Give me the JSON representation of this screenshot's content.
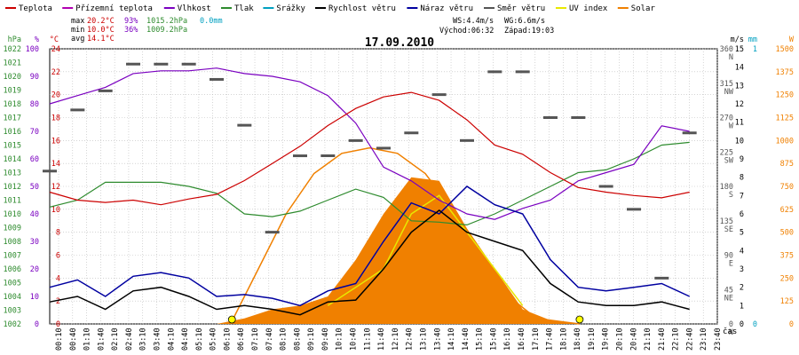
{
  "legend": [
    {
      "label": "Teplota",
      "color": "#cc0000"
    },
    {
      "label": "Přízemní teplota",
      "color": "#b000b0"
    },
    {
      "label": "Vlhkost",
      "color": "#7a00c0"
    },
    {
      "label": "Tlak",
      "color": "#2e8b2e"
    },
    {
      "label": "Srážky",
      "color": "#00a0c0"
    },
    {
      "label": "Rychlost větru",
      "color": "#000000"
    },
    {
      "label": "Náraz větru",
      "color": "#0000a0"
    },
    {
      "label": "Směr větru",
      "color": "#555555"
    },
    {
      "label": "UV index",
      "color": "#e8e800"
    },
    {
      "label": "Solar",
      "color": "#f08000"
    }
  ],
  "stats": {
    "max": {
      "label": "max",
      "temp": "20.2°C",
      "hum": "93%",
      "press": "1015.2hPa",
      "rain": "0.0mm"
    },
    "min": {
      "label": "min",
      "temp": "10.0°C",
      "hum": "36%",
      "press": "1009.2hPa"
    },
    "avg": {
      "label": "avg",
      "temp": "14.1°C"
    }
  },
  "wind_info": {
    "ws": "WS:4.4m/s",
    "wg": "WG:6.6m/s",
    "sunrise": "Východ:06:32",
    "sunset": "Západ:19:03"
  },
  "date": "17.09.2010",
  "colors": {
    "temp": "#cc0000",
    "hum": "#7a00c0",
    "press": "#2e8b2e",
    "wind": "#000000",
    "gust": "#0000a0",
    "dir": "#555555",
    "uv": "#e8e800",
    "solar": "#f08000",
    "rain": "#00a0c0"
  },
  "chart_data": {
    "type": "line",
    "date": "17.09.2010",
    "x_unit": "čas",
    "x_ticks": [
      "00:10",
      "00:40",
      "01:10",
      "01:40",
      "02:10",
      "02:40",
      "03:10",
      "03:40",
      "04:10",
      "04:40",
      "05:10",
      "05:40",
      "06:10",
      "06:40",
      "07:10",
      "07:40",
      "08:10",
      "08:40",
      "09:10",
      "09:40",
      "10:10",
      "10:40",
      "11:10",
      "11:40",
      "12:10",
      "12:40",
      "13:10",
      "13:40",
      "14:10",
      "14:40",
      "15:10",
      "15:40",
      "16:10",
      "16:40",
      "17:10",
      "17:40",
      "18:10",
      "18:40",
      "19:10",
      "19:40",
      "20:10",
      "20:40",
      "21:10",
      "21:40",
      "22:10",
      "22:40",
      "23:10",
      "23:40"
    ],
    "axes": {
      "pressure": {
        "unit": "hPa",
        "min": 1002,
        "max": 1022,
        "ticks": [
          "1022",
          "1021",
          "1020",
          "1019",
          "1018",
          "1017",
          "1016",
          "1015",
          "1014",
          "1013",
          "1012",
          "1011",
          "1010",
          "1009",
          "1008",
          "1007",
          "1006",
          "1005",
          "1004",
          "1003",
          "1002"
        ]
      },
      "humidity": {
        "unit": "%",
        "min": 0,
        "max": 100,
        "ticks": [
          "100",
          "90",
          "80",
          "70",
          "60",
          "50",
          "40",
          "30",
          "20",
          "10",
          "0"
        ]
      },
      "temperature": {
        "unit": "°C",
        "min": 0,
        "max": 24,
        "ticks": [
          "24",
          "22",
          "20",
          "18",
          "16",
          "14",
          "12",
          "10",
          "8",
          "6",
          "4",
          "2",
          "0"
        ]
      },
      "direction": {
        "ticks": [
          "360\nN",
          "315\nNW",
          "270\nW",
          "225\nSW",
          "180\nS",
          "135\nSE",
          "90\nE",
          "45\nNE",
          "0\nN"
        ]
      },
      "wind": {
        "unit": "m/s",
        "min": 0,
        "max": 15,
        "ticks": [
          "15",
          "14",
          "13",
          "12",
          "11",
          "10",
          "9",
          "8",
          "7",
          "6",
          "5",
          "4",
          "3",
          "2",
          "1",
          "0"
        ]
      },
      "rain": {
        "unit": "mm",
        "min": 0,
        "max": 1,
        "ticks": [
          "1",
          "0"
        ]
      },
      "solar": {
        "unit": "W",
        "min": 0,
        "max": 1500,
        "ticks": [
          "1500",
          "1375",
          "1250",
          "1125",
          "1000",
          "875",
          "750",
          "625",
          "500",
          "375",
          "250",
          "125",
          "0"
        ]
      }
    },
    "series": [
      {
        "name": "Teplota",
        "unit": "°C",
        "points": [
          [
            0,
            11.5
          ],
          [
            1,
            10.8
          ],
          [
            2,
            10.6
          ],
          [
            3,
            10.8
          ],
          [
            4,
            10.4
          ],
          [
            5,
            10.9
          ],
          [
            6,
            11.3
          ],
          [
            7,
            12.5
          ],
          [
            8,
            14.0
          ],
          [
            9,
            15.5
          ],
          [
            10,
            17.3
          ],
          [
            11,
            18.8
          ],
          [
            12,
            19.8
          ],
          [
            13,
            20.2
          ],
          [
            14,
            19.5
          ],
          [
            15,
            17.8
          ],
          [
            16,
            15.6
          ],
          [
            17,
            14.8
          ],
          [
            18,
            13.2
          ],
          [
            19,
            11.9
          ],
          [
            20,
            11.5
          ],
          [
            21,
            11.2
          ],
          [
            22,
            11.0
          ],
          [
            23,
            11.5
          ]
        ]
      },
      {
        "name": "Vlhkost",
        "unit": "%",
        "points": [
          [
            0,
            80
          ],
          [
            1,
            83
          ],
          [
            2,
            86
          ],
          [
            3,
            91
          ],
          [
            4,
            92
          ],
          [
            5,
            92
          ],
          [
            6,
            93
          ],
          [
            7,
            91
          ],
          [
            8,
            90
          ],
          [
            9,
            88
          ],
          [
            10,
            83
          ],
          [
            11,
            73
          ],
          [
            12,
            57
          ],
          [
            13,
            52
          ],
          [
            14,
            45
          ],
          [
            15,
            40
          ],
          [
            16,
            38
          ],
          [
            17,
            42
          ],
          [
            18,
            45
          ],
          [
            19,
            52
          ],
          [
            20,
            55
          ],
          [
            21,
            58
          ],
          [
            22,
            72
          ],
          [
            23,
            70
          ]
        ]
      },
      {
        "name": "Tlak",
        "unit": "hPa",
        "points": [
          [
            0,
            1010.5
          ],
          [
            1,
            1011
          ],
          [
            2,
            1012.3
          ],
          [
            3,
            1012.3
          ],
          [
            4,
            1012.3
          ],
          [
            5,
            1012
          ],
          [
            6,
            1011.5
          ],
          [
            7,
            1010
          ],
          [
            8,
            1009.8
          ],
          [
            9,
            1010.2
          ],
          [
            10,
            1011
          ],
          [
            11,
            1011.8
          ],
          [
            12,
            1011.2
          ],
          [
            13,
            1009.5
          ],
          [
            14,
            1009.4
          ],
          [
            15,
            1009.2
          ],
          [
            16,
            1010
          ],
          [
            17,
            1011
          ],
          [
            18,
            1012
          ],
          [
            19,
            1013
          ],
          [
            20,
            1013.2
          ],
          [
            21,
            1014
          ],
          [
            22,
            1015
          ],
          [
            23,
            1015.2
          ]
        ]
      },
      {
        "name": "Rychlost větru",
        "unit": "m/s",
        "points": [
          [
            0,
            1.2
          ],
          [
            1,
            1.5
          ],
          [
            2,
            0.8
          ],
          [
            3,
            1.8
          ],
          [
            4,
            2.0
          ],
          [
            5,
            1.5
          ],
          [
            6,
            0.8
          ],
          [
            7,
            1.0
          ],
          [
            8,
            0.8
          ],
          [
            9,
            0.5
          ],
          [
            10,
            1.2
          ],
          [
            11,
            1.3
          ],
          [
            12,
            3.0
          ],
          [
            13,
            5.0
          ],
          [
            14,
            6.2
          ],
          [
            15,
            5.0
          ],
          [
            16,
            4.5
          ],
          [
            17,
            4.0
          ],
          [
            18,
            2.2
          ],
          [
            19,
            1.2
          ],
          [
            20,
            1.0
          ],
          [
            21,
            1.0
          ],
          [
            22,
            1.2
          ],
          [
            23,
            0.8
          ]
        ]
      },
      {
        "name": "Náraz větru",
        "unit": "m/s",
        "points": [
          [
            0,
            2.0
          ],
          [
            1,
            2.4
          ],
          [
            2,
            1.5
          ],
          [
            3,
            2.6
          ],
          [
            4,
            2.8
          ],
          [
            5,
            2.5
          ],
          [
            6,
            1.5
          ],
          [
            7,
            1.6
          ],
          [
            8,
            1.4
          ],
          [
            9,
            1.0
          ],
          [
            10,
            1.8
          ],
          [
            11,
            2.2
          ],
          [
            12,
            4.5
          ],
          [
            13,
            6.6
          ],
          [
            14,
            6.0
          ],
          [
            15,
            7.5
          ],
          [
            16,
            6.5
          ],
          [
            17,
            6.0
          ],
          [
            18,
            3.5
          ],
          [
            19,
            2.0
          ],
          [
            20,
            1.8
          ],
          [
            21,
            2.0
          ],
          [
            22,
            2.2
          ],
          [
            23,
            1.5
          ]
        ]
      },
      {
        "name": "Solar",
        "unit": "W",
        "points": [
          [
            6,
            0
          ],
          [
            7,
            30
          ],
          [
            8,
            80
          ],
          [
            9,
            100
          ],
          [
            10,
            150
          ],
          [
            11,
            350
          ],
          [
            12,
            600
          ],
          [
            13,
            800
          ],
          [
            14,
            780
          ],
          [
            15,
            520
          ],
          [
            16,
            300
          ],
          [
            17,
            80
          ],
          [
            18,
            20
          ],
          [
            19,
            0
          ]
        ]
      },
      {
        "name": "Solar theoretical",
        "unit": "W",
        "points": [
          [
            6.5,
            0
          ],
          [
            7.5,
            300
          ],
          [
            8.5,
            600
          ],
          [
            9.5,
            820
          ],
          [
            10.5,
            930
          ],
          [
            11.5,
            960
          ],
          [
            12.5,
            930
          ],
          [
            13.5,
            820
          ],
          [
            14.5,
            620
          ],
          [
            15.5,
            380
          ],
          [
            16.5,
            150
          ],
          [
            17.5,
            30
          ],
          [
            19.05,
            0
          ]
        ]
      },
      {
        "name": "UV index",
        "unit": "",
        "points": [
          [
            10,
            1
          ],
          [
            11,
            2
          ],
          [
            12,
            3
          ],
          [
            13,
            6
          ],
          [
            14,
            7
          ],
          [
            15,
            5
          ],
          [
            16,
            3
          ],
          [
            17,
            1
          ]
        ]
      },
      {
        "name": "Směr větru",
        "unit": "°",
        "points": [
          [
            0,
            200
          ],
          [
            1,
            280
          ],
          [
            2,
            305
          ],
          [
            3,
            340
          ],
          [
            4,
            340
          ],
          [
            5,
            340
          ],
          [
            6,
            320
          ],
          [
            7,
            260
          ],
          [
            8,
            120
          ],
          [
            9,
            220
          ],
          [
            10,
            220
          ],
          [
            11,
            240
          ],
          [
            12,
            230
          ],
          [
            13,
            250
          ],
          [
            14,
            300
          ],
          [
            15,
            240
          ],
          [
            16,
            330
          ],
          [
            17,
            330
          ],
          [
            18,
            270
          ],
          [
            19,
            270
          ],
          [
            20,
            180
          ],
          [
            21,
            150
          ],
          [
            22,
            60
          ],
          [
            23,
            250
          ]
        ]
      }
    ]
  }
}
